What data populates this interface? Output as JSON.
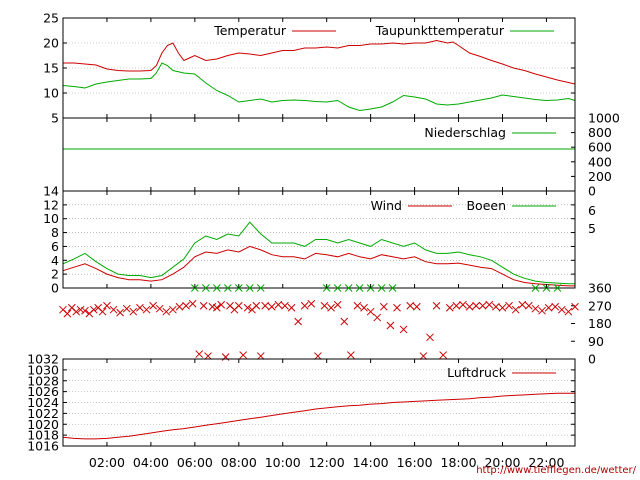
{
  "source_url": "http://www.tiefflegen.de/wetter/",
  "colors": {
    "red": "#cc0000",
    "green": "#00aa00",
    "frame": "#000000"
  },
  "chart_data": [
    {
      "type": "line",
      "panel": "temperature",
      "ylim": [
        5,
        25
      ],
      "yticks": [
        "5",
        "10",
        "15",
        "20",
        "25"
      ],
      "grid": true,
      "legend_placement": "top-right",
      "series": [
        {
          "name": "Temperatur",
          "color": "#cc0000",
          "x": [
            0,
            0.5,
            1,
            1.5,
            2,
            2.5,
            3,
            3.5,
            4,
            4.25,
            4.5,
            4.75,
            5,
            5.25,
            5.5,
            5.75,
            6,
            6.5,
            7,
            7.5,
            8,
            8.5,
            9,
            9.5,
            10,
            10.5,
            11,
            11.5,
            12,
            12.5,
            13,
            13.5,
            14,
            14.5,
            15,
            15.5,
            16,
            16.5,
            17,
            17.5,
            17.75,
            18,
            18.5,
            19,
            19.5,
            20,
            20.5,
            21,
            21.5,
            22,
            22.5,
            23,
            23.3
          ],
          "values": [
            16,
            16,
            15.8,
            15.6,
            14.8,
            14.5,
            14.4,
            14.4,
            14.5,
            15.5,
            18,
            19.5,
            20,
            18,
            16.5,
            17,
            17.5,
            16.5,
            16.8,
            17.5,
            18,
            17.8,
            17.5,
            18,
            18.5,
            18.5,
            19,
            19,
            19.2,
            19,
            19.5,
            19.5,
            19.8,
            19.8,
            20,
            19.8,
            20,
            20,
            20.5,
            20,
            20.2,
            19.5,
            18,
            17.3,
            16.5,
            15.8,
            15,
            14.5,
            13.8,
            13.2,
            12.6,
            12.1,
            11.8
          ]
        },
        {
          "name": "Taupunkttemperatur",
          "color": "#00aa00",
          "x": [
            0,
            0.5,
            1,
            1.5,
            2,
            2.5,
            3,
            3.5,
            4,
            4.25,
            4.5,
            4.75,
            5,
            5.5,
            6,
            6.5,
            7,
            7.5,
            8,
            8.5,
            9,
            9.5,
            10,
            10.5,
            11,
            11.5,
            12,
            12.5,
            13,
            13.5,
            14,
            14.5,
            15,
            15.5,
            16,
            16.5,
            17,
            17.5,
            18,
            18.5,
            19,
            19.5,
            20,
            20.5,
            21,
            21.5,
            22,
            22.5,
            23,
            23.3
          ],
          "values": [
            11.5,
            11.3,
            11,
            11.8,
            12.2,
            12.5,
            12.8,
            12.8,
            12.9,
            14,
            16,
            15.5,
            14.5,
            14,
            13.8,
            12,
            10.5,
            9.5,
            8.2,
            8.5,
            8.8,
            8.2,
            8.5,
            8.6,
            8.5,
            8.3,
            8.2,
            8.5,
            7.2,
            6.5,
            6.8,
            7.2,
            8.2,
            9.5,
            9.2,
            8.8,
            7.8,
            7.6,
            7.8,
            8.2,
            8.6,
            9,
            9.6,
            9.3,
            9,
            8.7,
            8.5,
            8.6,
            8.9,
            8.5
          ]
        }
      ]
    },
    {
      "type": "line",
      "panel": "precipitation",
      "ylim": [
        0,
        1000
      ],
      "yticks": [
        "0",
        "200",
        "400",
        "600",
        "800",
        "1000"
      ],
      "legend_placement": "top-right",
      "series": [
        {
          "name": "Niederschlag",
          "color": "#00aa00",
          "x": [
            0,
            23.3
          ],
          "values": [
            0,
            0
          ]
        }
      ]
    },
    {
      "type": "line",
      "panel": "wind",
      "ylim": [
        0,
        14
      ],
      "yticks": [
        "0",
        "2",
        "4",
        "6",
        "8",
        "10",
        "12",
        "14"
      ],
      "yticks_right": [
        "5",
        "6"
      ],
      "grid": true,
      "legend_placement": "top-right",
      "series": [
        {
          "name": "Wind",
          "color": "#cc0000",
          "x": [
            0,
            0.5,
            1,
            1.5,
            2,
            2.5,
            3,
            3.5,
            4,
            4.5,
            5,
            5.5,
            6,
            6.5,
            7,
            7.5,
            8,
            8.5,
            9,
            9.5,
            10,
            10.5,
            11,
            11.5,
            12,
            12.5,
            13,
            13.5,
            14,
            14.5,
            15,
            15.5,
            16,
            16.5,
            17,
            17.5,
            18,
            18.5,
            19,
            19.5,
            20,
            20.5,
            21,
            21.5,
            22,
            22.5,
            23,
            23.3
          ],
          "values": [
            2.5,
            3,
            3.5,
            2.8,
            2,
            1.5,
            1.2,
            1.2,
            1,
            1.2,
            2,
            3,
            4.5,
            5.2,
            5,
            5.5,
            5.2,
            6,
            5.5,
            4.8,
            4.5,
            4.5,
            4.2,
            5,
            4.8,
            4.5,
            5,
            4.5,
            4.2,
            4.8,
            4.5,
            4.2,
            4.5,
            3.8,
            3.5,
            3.5,
            3.6,
            3.3,
            3,
            2.8,
            2,
            1.2,
            0.8,
            0.6,
            0.5,
            0.4,
            0.3,
            0.3
          ]
        },
        {
          "name": "Boeen",
          "color": "#00aa00",
          "x": [
            0,
            0.5,
            1,
            1.5,
            2,
            2.5,
            3,
            3.5,
            4,
            4.5,
            5,
            5.5,
            6,
            6.5,
            7,
            7.5,
            8,
            8.5,
            9,
            9.5,
            10,
            10.5,
            11,
            11.5,
            12,
            12.5,
            13,
            13.5,
            14,
            14.5,
            15,
            15.5,
            16,
            16.5,
            17,
            17.5,
            18,
            18.5,
            19,
            19.5,
            20,
            20.5,
            21,
            21.5,
            22,
            22.5,
            23,
            23.3
          ],
          "values": [
            3.5,
            4.2,
            5,
            3.8,
            2.8,
            2,
            1.8,
            1.8,
            1.5,
            1.8,
            3,
            4.2,
            6.5,
            7.5,
            7,
            7.8,
            7.5,
            9.5,
            7.8,
            6.5,
            6.5,
            6.5,
            6,
            7,
            7,
            6.5,
            7,
            6.5,
            6,
            7,
            6.5,
            6,
            6.5,
            5.5,
            5,
            5,
            5.2,
            4.8,
            4.5,
            4,
            3,
            2,
            1.4,
            1,
            0.8,
            0.7,
            0.6,
            0.6
          ]
        }
      ]
    },
    {
      "type": "scatter",
      "panel": "wind-direction",
      "ylim": [
        0,
        360
      ],
      "yticks_right": [
        "0",
        "90",
        "180",
        "270",
        "360"
      ],
      "series": [
        {
          "name": "",
          "color": "#cc0000",
          "x": [
            0,
            0.2,
            0.4,
            0.6,
            0.8,
            1,
            1.2,
            1.4,
            1.6,
            1.8,
            2,
            2.3,
            2.6,
            2.9,
            3.2,
            3.5,
            3.8,
            4.1,
            4.4,
            4.7,
            5,
            5.3,
            5.6,
            5.9,
            6.2,
            6.4,
            6.6,
            6.8,
            7,
            7.2,
            7.4,
            7.6,
            7.8,
            8,
            8.2,
            8.4,
            8.6,
            8.8,
            9,
            9.2,
            9.5,
            9.8,
            10.1,
            10.4,
            10.7,
            11,
            11.3,
            11.6,
            11.9,
            12.2,
            12.5,
            12.8,
            13.1,
            13.4,
            13.7,
            14,
            14.3,
            14.6,
            14.9,
            15.2,
            15.5,
            15.8,
            16.1,
            16.4,
            16.7,
            17,
            17.3,
            17.6,
            17.9,
            18.2,
            18.5,
            18.8,
            19.1,
            19.4,
            19.7,
            20,
            20.3,
            20.6,
            20.9,
            21.2,
            21.5,
            21.8,
            22.1,
            22.4,
            22.7,
            23,
            23.3
          ],
          "values": [
            250,
            230,
            260,
            240,
            250,
            245,
            230,
            250,
            260,
            240,
            270,
            250,
            235,
            255,
            240,
            260,
            250,
            270,
            255,
            240,
            250,
            265,
            270,
            280,
            25,
            270,
            15,
            265,
            260,
            275,
            10,
            270,
            250,
            270,
            20,
            260,
            250,
            270,
            15,
            270,
            265,
            275,
            270,
            260,
            190,
            270,
            280,
            15,
            270,
            260,
            275,
            190,
            20,
            270,
            260,
            240,
            210,
            265,
            170,
            260,
            150,
            270,
            265,
            15,
            110,
            270,
            20,
            260,
            270,
            275,
            265,
            270,
            270,
            275,
            265,
            260,
            270,
            250,
            275,
            270,
            255,
            245,
            260,
            265,
            250,
            240,
            265
          ]
        },
        {
          "name": "",
          "color": "#00aa00",
          "x": [
            6,
            6.5,
            7,
            7.5,
            8,
            8.5,
            9,
            12,
            12.5,
            13,
            13.5,
            14,
            14.5,
            15,
            21.5,
            22,
            22.5
          ],
          "values": [
            360,
            360,
            360,
            360,
            360,
            360,
            360,
            360,
            360,
            360,
            360,
            360,
            360,
            360,
            360,
            360,
            360
          ]
        }
      ]
    },
    {
      "type": "line",
      "panel": "pressure",
      "ylim": [
        1016,
        1032
      ],
      "yticks": [
        "1016",
        "1018",
        "1020",
        "1022",
        "1024",
        "1026",
        "1028",
        "1030",
        "1032"
      ],
      "grid": true,
      "legend_placement": "top-right",
      "series": [
        {
          "name": "Luftdruck",
          "color": "#cc0000",
          "x": [
            0,
            0.5,
            1,
            1.5,
            2,
            2.5,
            3,
            3.5,
            4,
            4.5,
            5,
            5.5,
            6,
            6.5,
            7,
            7.5,
            8,
            8.5,
            9,
            9.5,
            10,
            10.5,
            11,
            11.5,
            12,
            12.5,
            13,
            13.5,
            14,
            14.5,
            15,
            15.5,
            16,
            16.5,
            17,
            17.5,
            18,
            18.5,
            19,
            19.5,
            20,
            20.5,
            21,
            21.5,
            22,
            22.5,
            23,
            23.3
          ],
          "values": [
            1017.6,
            1017.4,
            1017.3,
            1017.3,
            1017.4,
            1017.6,
            1017.8,
            1018.1,
            1018.4,
            1018.7,
            1019,
            1019.2,
            1019.5,
            1019.8,
            1020.1,
            1020.4,
            1020.7,
            1021,
            1021.3,
            1021.6,
            1021.9,
            1022.2,
            1022.5,
            1022.8,
            1023,
            1023.2,
            1023.4,
            1023.5,
            1023.7,
            1023.8,
            1024,
            1024.1,
            1024.2,
            1024.3,
            1024.4,
            1024.5,
            1024.6,
            1024.7,
            1024.9,
            1025,
            1025.2,
            1025.3,
            1025.4,
            1025.5,
            1025.6,
            1025.7,
            1025.7,
            1025.7
          ]
        }
      ]
    }
  ],
  "x_axis": {
    "range_hours": [
      0,
      23.3
    ],
    "ticks": [
      {
        "hour": 2,
        "label": "02:00"
      },
      {
        "hour": 4,
        "label": "04:00"
      },
      {
        "hour": 6,
        "label": "06:00"
      },
      {
        "hour": 8,
        "label": "08:00"
      },
      {
        "hour": 10,
        "label": "10:00"
      },
      {
        "hour": 12,
        "label": "12:00"
      },
      {
        "hour": 14,
        "label": "14:00"
      },
      {
        "hour": 16,
        "label": "16:00"
      },
      {
        "hour": 18,
        "label": "18:00"
      },
      {
        "hour": 20,
        "label": "20:00"
      },
      {
        "hour": 22,
        "label": "22:00"
      }
    ]
  }
}
